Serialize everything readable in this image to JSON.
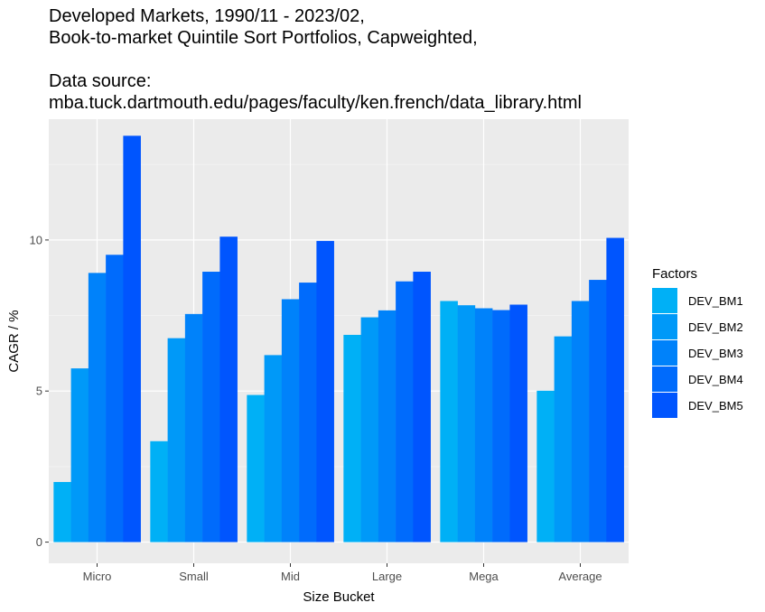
{
  "chart_data": {
    "type": "bar",
    "title_lines": [
      "Developed Markets, 1990/11 - 2023/02,",
      "Book-to-market Quintile Sort Portfolios, Capweighted,",
      "",
      "Data source:",
      "mba.tuck.dartmouth.edu/pages/faculty/ken.french/data_library.html"
    ],
    "xlabel": "Size Bucket",
    "ylabel": "CAGR / %",
    "categories": [
      "Micro",
      "Small",
      "Mid",
      "Large",
      "Mega",
      "Average"
    ],
    "ylim": [
      -0.7,
      14
    ],
    "yticks": [
      0,
      5,
      10
    ],
    "grid": true,
    "legend_title": "Factors",
    "legend_position": "right",
    "series": [
      {
        "name": "DEV_BM1",
        "color": "#00b0f6",
        "values": [
          1.99,
          3.34,
          4.87,
          6.86,
          7.98,
          5.01
        ]
      },
      {
        "name": "DEV_BM2",
        "color": "#0099f8",
        "values": [
          5.75,
          6.75,
          6.19,
          7.44,
          7.84,
          6.81
        ]
      },
      {
        "name": "DEV_BM3",
        "color": "#0082fa",
        "values": [
          8.91,
          7.55,
          8.04,
          7.67,
          7.74,
          7.98
        ]
      },
      {
        "name": "DEV_BM4",
        "color": "#006bfc",
        "values": [
          9.51,
          8.95,
          8.59,
          8.63,
          7.68,
          8.68
        ]
      },
      {
        "name": "DEV_BM5",
        "color": "#0055fe",
        "values": [
          13.45,
          10.11,
          9.97,
          8.95,
          7.86,
          10.07
        ]
      }
    ]
  }
}
